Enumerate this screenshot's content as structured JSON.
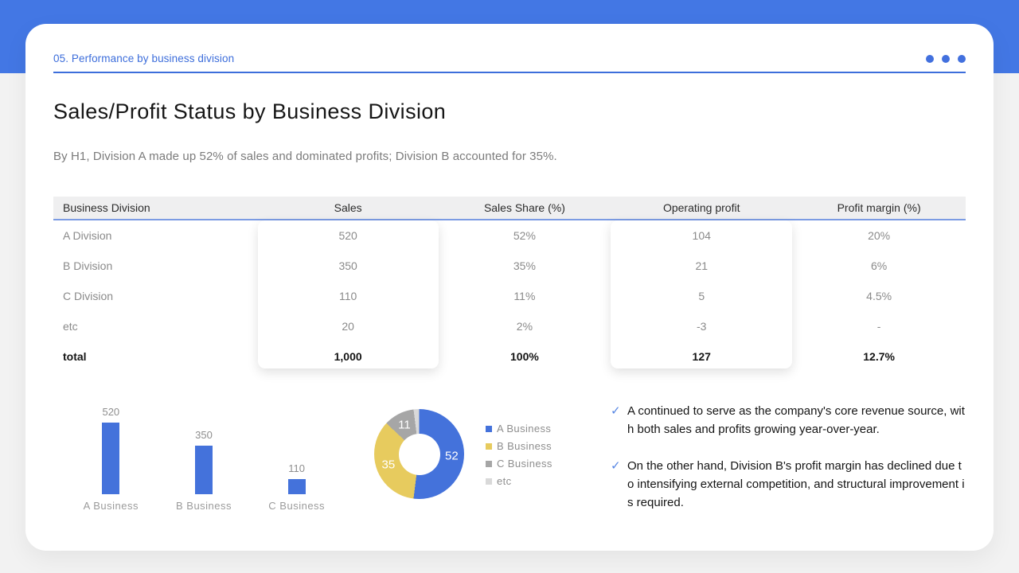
{
  "header": {
    "kicker": "05. Performance by business division",
    "title": "Sales/Profit Status by Business Division",
    "subtitle": "By H1, Division A made up 52% of sales and dominated profits; Division B accounted for 35%.",
    "menu_icon": "ellipsis-dots"
  },
  "colors": {
    "band_blue": "#4377E4",
    "accent_blue": "#4472DB",
    "kicker_blue": "#3D6EDB",
    "chart_yellow": "#E7CB5E",
    "chart_gray": "#A6A6A6",
    "chart_light_gray": "#D9D9D9",
    "background_gray": "#F2F2F2"
  },
  "table": {
    "headers": [
      "Business Division",
      "Sales",
      "Sales Share (%)",
      "Operating profit",
      "Profit margin (%)"
    ],
    "rows": [
      [
        "A Division",
        "520",
        "52%",
        "104",
        "20%"
      ],
      [
        "B Division",
        "350",
        "35%",
        "21",
        "6%"
      ],
      [
        "C Division",
        "110",
        "11%",
        "5",
        "4.5%"
      ],
      [
        "etc",
        "20",
        "2%",
        "-3",
        "-"
      ],
      [
        "total",
        "1,000",
        "100%",
        "127",
        "12.7%"
      ]
    ],
    "elevated_columns": [
      "Sales",
      "Operating profit"
    ]
  },
  "chart_data": [
    {
      "type": "bar",
      "title": "",
      "xlabel": "",
      "ylabel": "",
      "categories": [
        "A Business",
        "B Business",
        "C Business"
      ],
      "values": [
        520,
        350,
        110
      ],
      "bar_color": "#4472DB",
      "data_labels": [
        "520",
        "350",
        "110"
      ],
      "grid": false,
      "ylim": [
        0,
        520
      ]
    },
    {
      "type": "pie",
      "subtype": "donut",
      "title": "",
      "labels": [
        "A Business",
        "B Business",
        "C Business",
        "etc"
      ],
      "values": [
        52,
        35,
        11,
        2
      ],
      "colors": [
        "#4472DB",
        "#E7CB5E",
        "#A6A6A6",
        "#D9D9D9"
      ],
      "data_labels": [
        "52",
        "35",
        "11",
        null
      ],
      "legend_position": "right",
      "start_angle_deg": 0,
      "direction": "clockwise"
    }
  ],
  "notes": {
    "items": [
      {
        "text": "A continued to serve as the company's core revenue source, with both sales and profits growing year-over-year."
      },
      {
        "text": "On the other hand, Division B's profit margin has declined due to intensifying external competition, and structural improvement is required."
      }
    ]
  }
}
